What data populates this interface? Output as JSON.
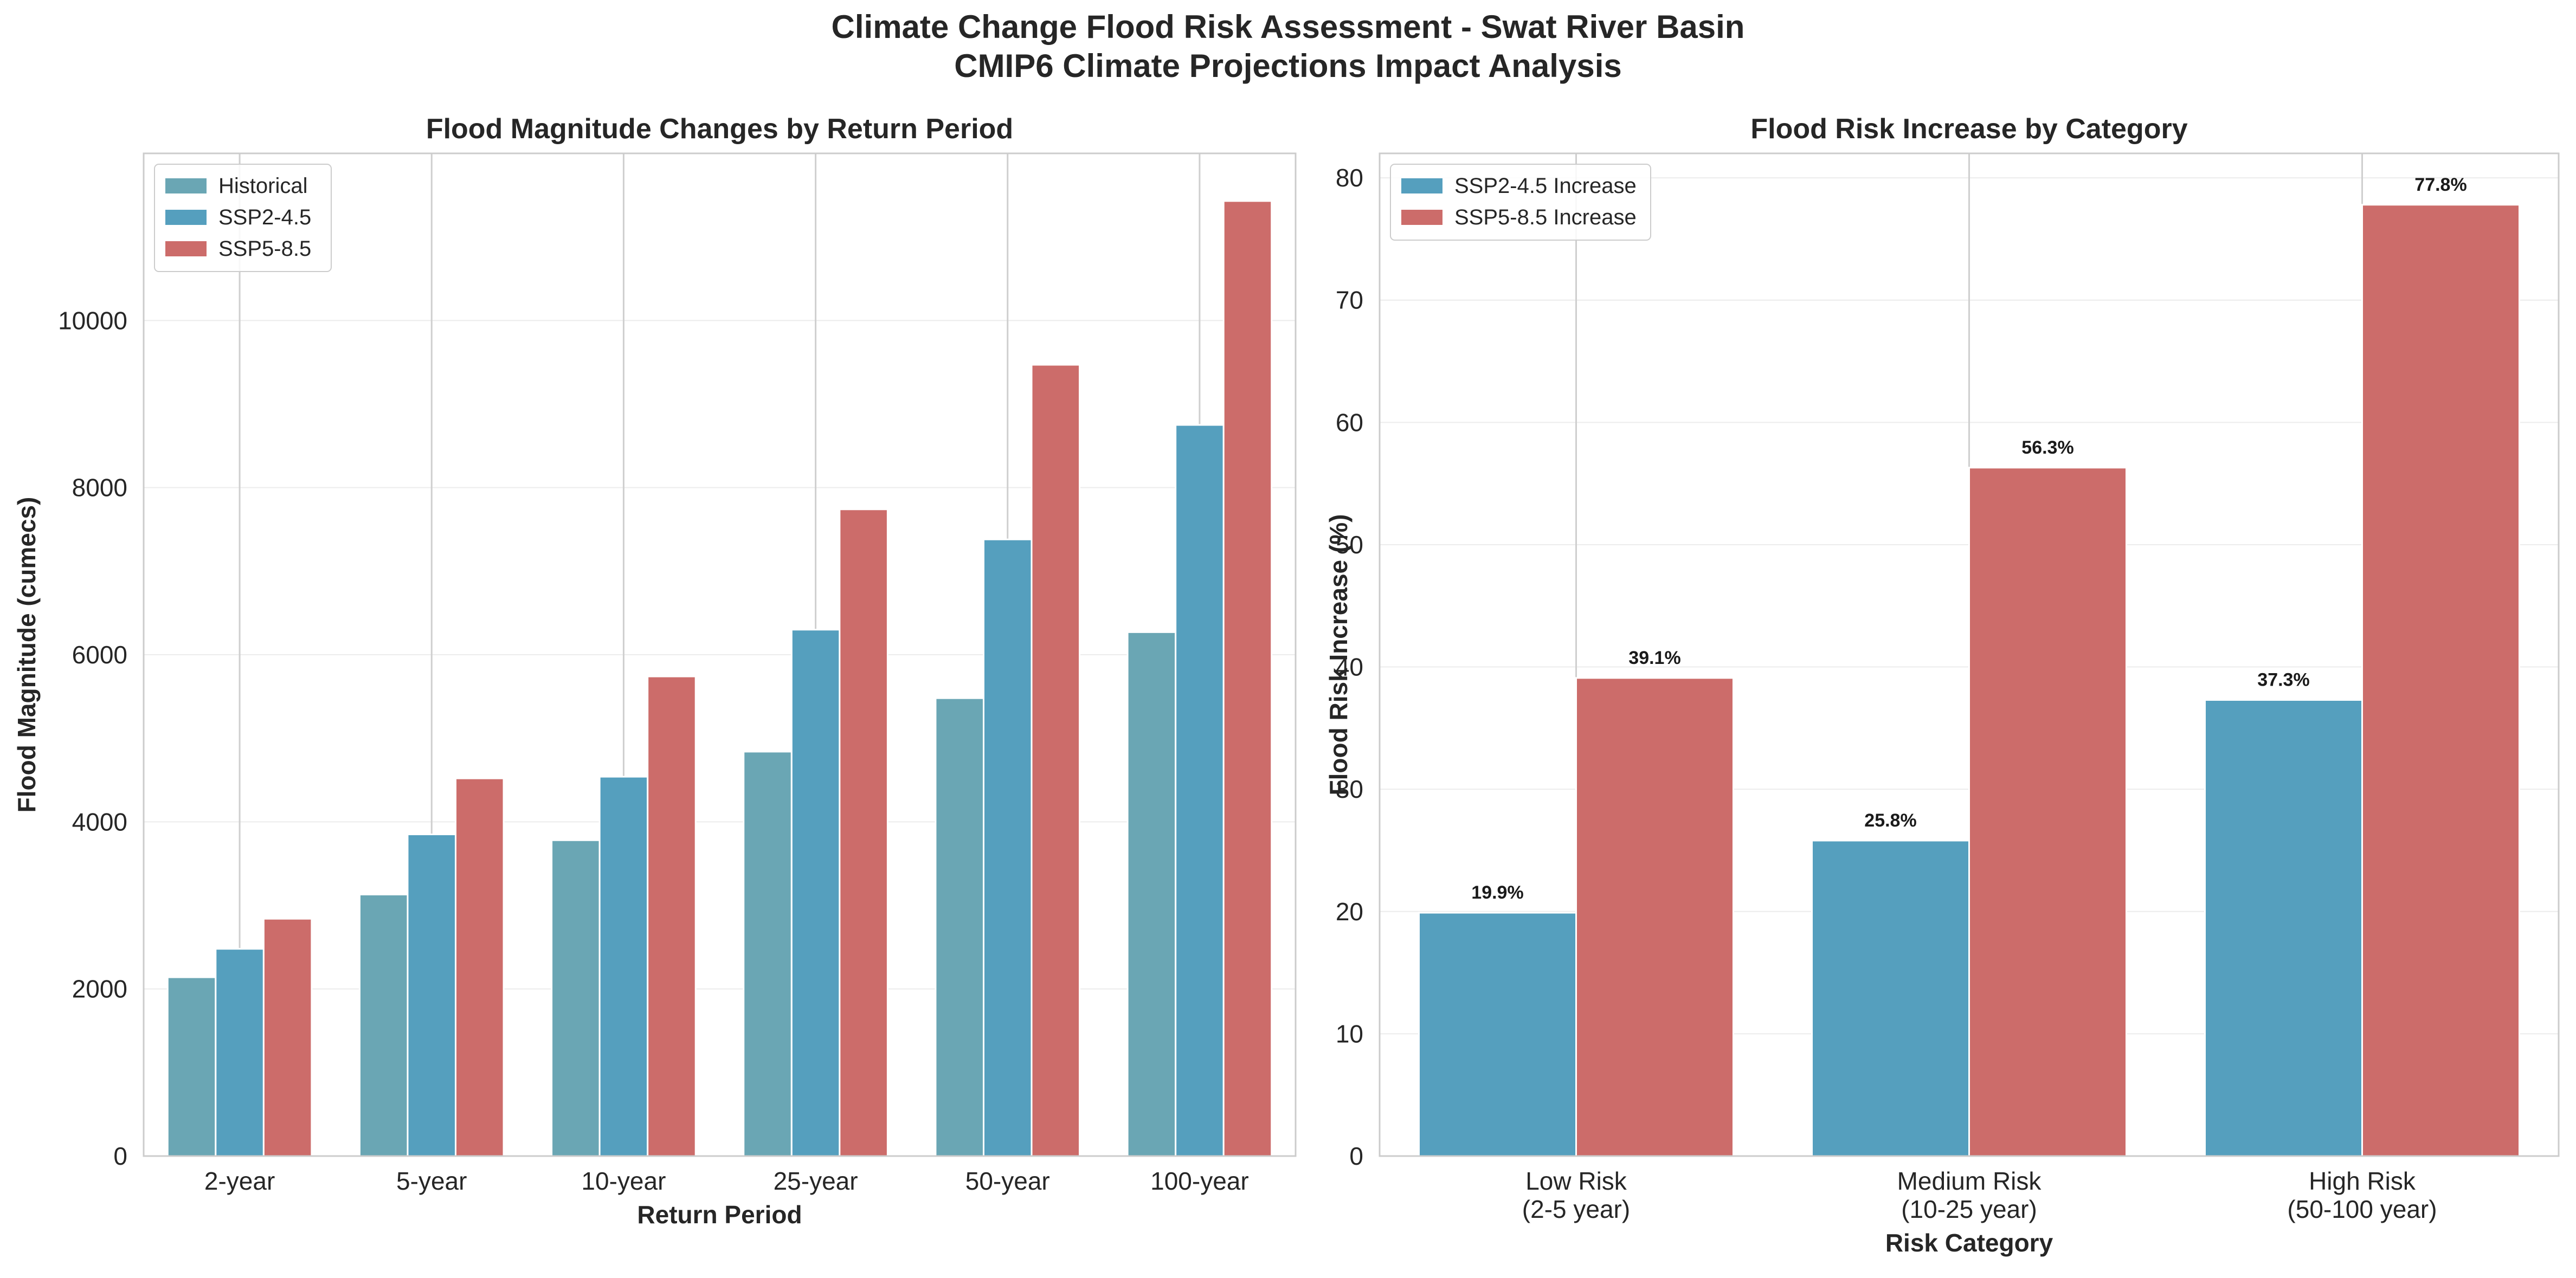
{
  "figure": {
    "title_line1": "Climate Change Flood Risk Assessment - Swat River Basin",
    "title_line2": "CMIP6 Climate Projections Impact Analysis"
  },
  "chart_data": [
    {
      "type": "bar",
      "title": "Flood Magnitude Changes by Return Period",
      "xlabel": "Return Period",
      "ylabel": "Flood Magnitude (cumecs)",
      "categories": [
        "2-year",
        "5-year",
        "10-year",
        "25-year",
        "50-year",
        "100-year"
      ],
      "ylim": [
        0,
        12000
      ],
      "yticks": [
        0,
        2000,
        4000,
        6000,
        8000,
        10000
      ],
      "grid": true,
      "legend_position": "top-left",
      "series": [
        {
          "name": "Historical",
          "color": "#6aa6b4",
          "values": [
            2140,
            3130,
            3780,
            4840,
            5480,
            6270
          ]
        },
        {
          "name": "SSP2-4.5",
          "color": "#559fbe",
          "values": [
            2480,
            3850,
            4540,
            6300,
            7380,
            8750
          ]
        },
        {
          "name": "SSP5-8.5",
          "color": "#cc6c6a",
          "values": [
            2840,
            4520,
            5740,
            7740,
            9470,
            11430
          ]
        }
      ]
    },
    {
      "type": "bar",
      "title": "Flood Risk Increase by Category",
      "xlabel": "Risk Category",
      "ylabel": "Flood Risk Increase (%)",
      "categories": [
        "Low Risk\n(2-5 year)",
        "Medium Risk\n(10-25 year)",
        "High Risk\n(50-100 year)"
      ],
      "ylim": [
        0,
        82
      ],
      "yticks": [
        0,
        10,
        20,
        30,
        40,
        50,
        60,
        70,
        80
      ],
      "grid": true,
      "legend_position": "top-left",
      "series": [
        {
          "name": "SSP2-4.5 Increase",
          "color": "#559fbe",
          "values": [
            19.9,
            25.8,
            37.3
          ],
          "labels": [
            "19.9%",
            "25.8%",
            "37.3%"
          ]
        },
        {
          "name": "SSP5-8.5 Increase",
          "color": "#cc6c6a",
          "values": [
            39.1,
            56.3,
            77.8
          ],
          "labels": [
            "39.1%",
            "56.3%",
            "77.8%"
          ]
        }
      ]
    }
  ]
}
